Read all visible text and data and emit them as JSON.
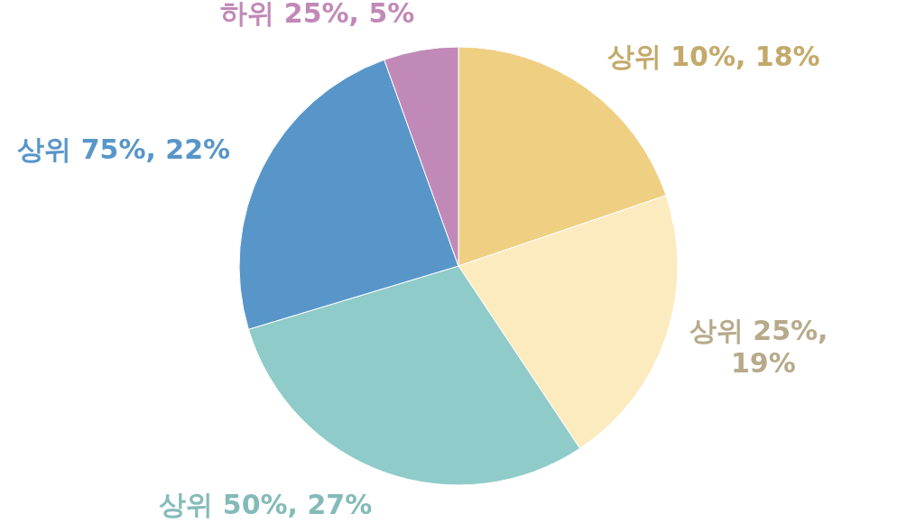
{
  "chart_data": {
    "type": "pie",
    "categories": [
      "상위 10%, 18%",
      "상위 25%, 19%",
      "상위 50%, 27%",
      "상위 75%, 22%",
      "하위 25%, 5%"
    ],
    "values": [
      18,
      19,
      27,
      22,
      5
    ],
    "colors": [
      "#efcf82",
      "#fdebc0",
      "#8fcbc8",
      "#5896c9",
      "#c189b8"
    ]
  }
}
